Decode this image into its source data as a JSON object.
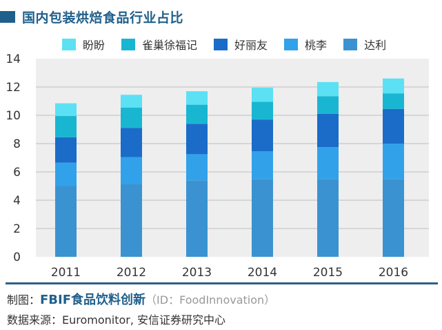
{
  "title": "国内包装烘焙食品行业占比",
  "colors": {
    "title": "#1f5f8b",
    "plot_bg": "#eeeeee",
    "grid": "#bdbdbd",
    "footer_line": "#2e5f86"
  },
  "chart_data": {
    "type": "bar",
    "stacked": true,
    "title": "国内包装烘焙食品行业占比",
    "xlabel": "",
    "ylabel": "",
    "categories": [
      "2011",
      "2012",
      "2013",
      "2014",
      "2015",
      "2016"
    ],
    "ylim": [
      0,
      14
    ],
    "yticks": [
      0,
      2,
      4,
      6,
      8,
      10,
      12,
      14
    ],
    "grid": true,
    "legend_position": "top",
    "series": [
      {
        "name": "达利",
        "color": "#3a93d0",
        "values": [
          5.0,
          5.15,
          5.4,
          5.5,
          5.5,
          5.5
        ]
      },
      {
        "name": "桃李",
        "color": "#31a2ea",
        "values": [
          1.65,
          1.9,
          1.85,
          1.95,
          2.25,
          2.5
        ]
      },
      {
        "name": "好丽友",
        "color": "#1a6cc8",
        "values": [
          1.8,
          2.05,
          2.15,
          2.25,
          2.35,
          2.45
        ]
      },
      {
        "name": "雀巢徐福记",
        "color": "#19b6d1",
        "values": [
          1.5,
          1.45,
          1.35,
          1.25,
          1.25,
          1.1
        ]
      },
      {
        "name": "盼盼",
        "color": "#5ce0f4",
        "values": [
          0.9,
          0.9,
          0.95,
          1.0,
          1.0,
          1.05
        ]
      }
    ],
    "legend_order": [
      "盼盼",
      "雀巢徐福记",
      "好丽友",
      "桃李",
      "达利"
    ]
  },
  "footer": {
    "maker_label": "制图：",
    "brand": "FBIF食品饮料创新",
    "id_text": "（ID：FoodInnovation）",
    "source": "数据来源：Euromonitor, 安信证券研究中心"
  }
}
